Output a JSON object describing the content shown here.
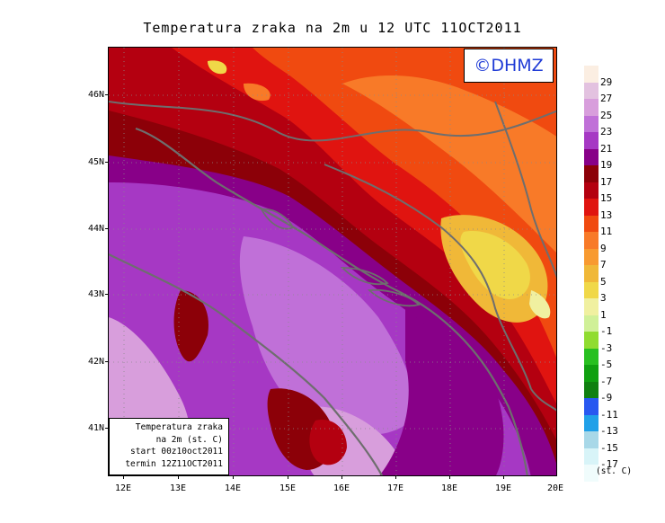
{
  "title": "Temperatura zraka na 2m u 12 UTC 11OCT2011",
  "copyright": "©DHMZ",
  "info_box": {
    "line1": "Temperatura zraka",
    "line2": "na 2m (st. C)",
    "line3": "start 00z10oct2011",
    "line4": "termin 12Z11OCT2011"
  },
  "axes": {
    "lat_labels": [
      "46N",
      "45N",
      "44N",
      "43N",
      "42N",
      "41N"
    ],
    "lon_labels": [
      "12E",
      "13E",
      "14E",
      "15E",
      "16E",
      "17E",
      "18E",
      "19E",
      "20E"
    ]
  },
  "legend": {
    "unit": "(st. C)",
    "labels": [
      "29",
      "27",
      "25",
      "23",
      "21",
      "19",
      "17",
      "15",
      "13",
      "11",
      "9",
      "7",
      "5",
      "3",
      "1",
      "-1",
      "-3",
      "-5",
      "-7",
      "-9",
      "-11",
      "-13",
      "-15",
      "-17"
    ],
    "colors": [
      "#fbeee2",
      "#e3c2e0",
      "#d89edc",
      "#c070d8",
      "#a638c4",
      "#880088",
      "#8c0008",
      "#b40010",
      "#e01410",
      "#f04a10",
      "#f87a28",
      "#f89a30",
      "#f0b838",
      "#f0d848",
      "#f0f0a0",
      "#d0f098",
      "#90dc30",
      "#28c020",
      "#10a010",
      "#108010",
      "#2858f0",
      "#20a0e8",
      "#a8d8e8",
      "#d8f4f8",
      "#f0fcfc"
    ]
  },
  "colors": {
    "coastline": "#6e6e6e",
    "frame": "#000000",
    "copyright_text": "#1f3bd6"
  }
}
